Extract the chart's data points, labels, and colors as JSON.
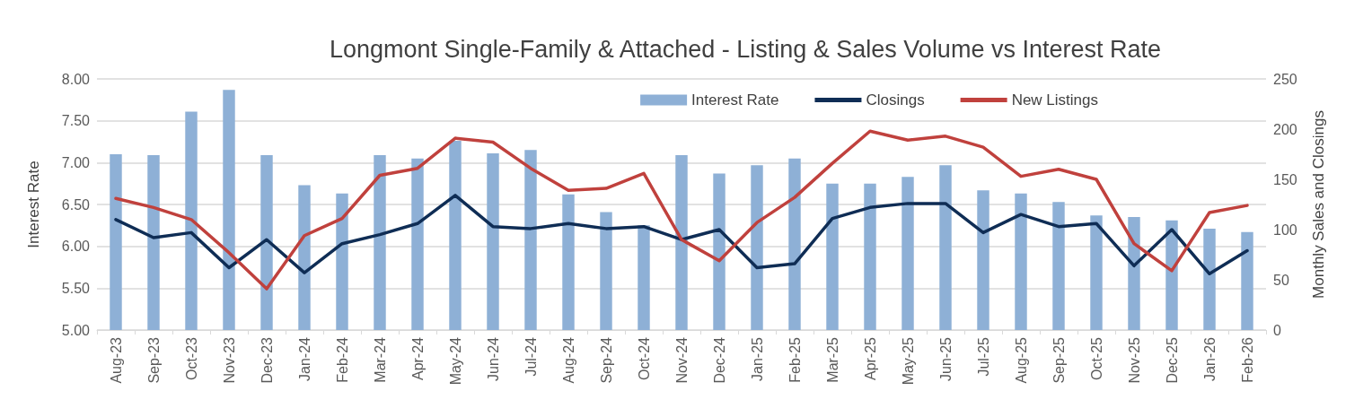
{
  "chart_data": {
    "type": "bar",
    "title": "Longmont Single-Family & Attached - Listing & Sales Volume vs Interest Rate",
    "ylabel": "Interest Rate",
    "y2label": "Monthly Sales and Closings",
    "categories": [
      "Aug-23",
      "Sep-23",
      "Oct-23",
      "Nov-23",
      "Dec-23",
      "Jan-24",
      "Feb-24",
      "Mar-24",
      "Apr-24",
      "May-24",
      "Jun-24",
      "Jul-24",
      "Aug-24",
      "Sep-24",
      "Oct-24",
      "Nov-24",
      "Dec-24",
      "Jan-25",
      "Feb-25",
      "Mar-25",
      "Apr-25",
      "May-25",
      "Jun-25",
      "Jul-25",
      "Aug-25",
      "Sep-25",
      "Oct-25",
      "Nov-25",
      "Dec-25",
      "Jan-26",
      "Feb-26"
    ],
    "series": [
      {
        "name": "Interest Rate",
        "color": "#8eb0d6",
        "values": [
          7.1,
          7.09,
          7.61,
          7.87,
          7.09,
          6.73,
          6.63,
          7.09,
          7.05,
          7.26,
          7.11,
          7.15,
          6.62,
          6.41,
          6.25,
          7.09,
          6.87,
          6.97,
          7.05,
          6.75,
          6.75,
          6.83,
          6.97,
          6.67,
          6.63,
          6.53,
          6.37,
          6.35,
          6.31,
          6.21,
          6.17
        ]
      },
      {
        "name": "Closings",
        "type": "line",
        "axis": "y2",
        "color": "#0f2d55",
        "values": [
          110,
          92,
          97,
          62,
          90,
          57,
          86,
          95,
          106,
          134,
          103,
          101,
          106,
          101,
          103,
          90,
          100,
          62,
          66,
          111,
          122,
          126,
          126,
          97,
          115,
          103,
          106,
          64,
          100,
          56,
          79
        ]
      },
      {
        "name": "New Listings",
        "type": "line",
        "axis": "y2",
        "color": "#c0413d",
        "values": [
          131,
          122,
          110,
          77,
          41,
          94,
          111,
          154,
          161,
          191,
          187,
          161,
          139,
          141,
          156,
          90,
          69,
          107,
          132,
          166,
          198,
          189,
          193,
          182,
          153,
          160,
          150,
          86,
          59,
          117,
          124
        ]
      }
    ],
    "ylim": [
      5,
      8
    ],
    "yticks": [
      {
        "value": 5,
        "label": "5.00"
      },
      {
        "value": 5.5,
        "label": "5.50"
      },
      {
        "value": 6,
        "label": "6.00"
      },
      {
        "value": 6.5,
        "label": "6.50"
      },
      {
        "value": 7,
        "label": "7.00"
      },
      {
        "value": 7.5,
        "label": "7.50"
      },
      {
        "value": 8,
        "label": "8.00"
      }
    ],
    "y2lim": [
      0,
      250
    ],
    "y2ticks": [
      0,
      50,
      100,
      150,
      200,
      250
    ],
    "grid": "y",
    "legend": "top right",
    "marker": "none",
    "line_style": "solid"
  }
}
